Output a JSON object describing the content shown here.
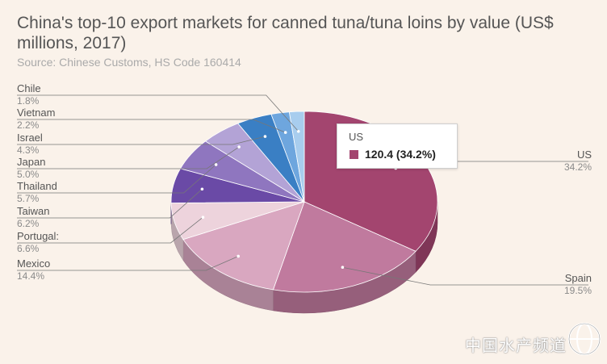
{
  "header": {
    "title": "China's top-10 export markets for canned tuna/tuna loins by value (US$ millions, 2017)",
    "source": "Source: Chinese Customs, HS Code 160414"
  },
  "chart_data": {
    "type": "pie",
    "title": "China's top-10 export markets for canned tuna/tuna loins by value (US$ millions, 2017)",
    "subtitle": "Source: Chinese Customs, HS Code 160414",
    "slices": [
      {
        "label": "US",
        "pct": "34.2%",
        "value": 34.2,
        "color": "#a3456f"
      },
      {
        "label": "Spain",
        "pct": "19.5%",
        "value": 19.5,
        "color": "#c07a9e"
      },
      {
        "label": "Mexico",
        "pct": "14.4%",
        "value": 14.4,
        "color": "#d9a7c0"
      },
      {
        "label": "Portugal:",
        "pct": "6.6%",
        "value": 6.6,
        "color": "#edd3dc"
      },
      {
        "label": "Taiwan",
        "pct": "6.2%",
        "value": 6.2,
        "color": "#6a4aa6"
      },
      {
        "label": "Thailand",
        "pct": "5.7%",
        "value": 5.7,
        "color": "#8f76bf"
      },
      {
        "label": "Japan",
        "pct": "5.0%",
        "value": 5.0,
        "color": "#b3a3d6"
      },
      {
        "label": "Israel",
        "pct": "4.3%",
        "value": 4.3,
        "color": "#3a7fc4"
      },
      {
        "label": "Vietnam",
        "pct": "2.2%",
        "value": 2.2,
        "color": "#6ea6de"
      },
      {
        "label": "Chile",
        "pct": "1.8%",
        "value": 1.8,
        "color": "#a8cdee"
      }
    ]
  },
  "tooltip": {
    "title": "US",
    "value": "120.4 (34.2%)"
  },
  "watermark": {
    "text": "中国水产频道"
  }
}
